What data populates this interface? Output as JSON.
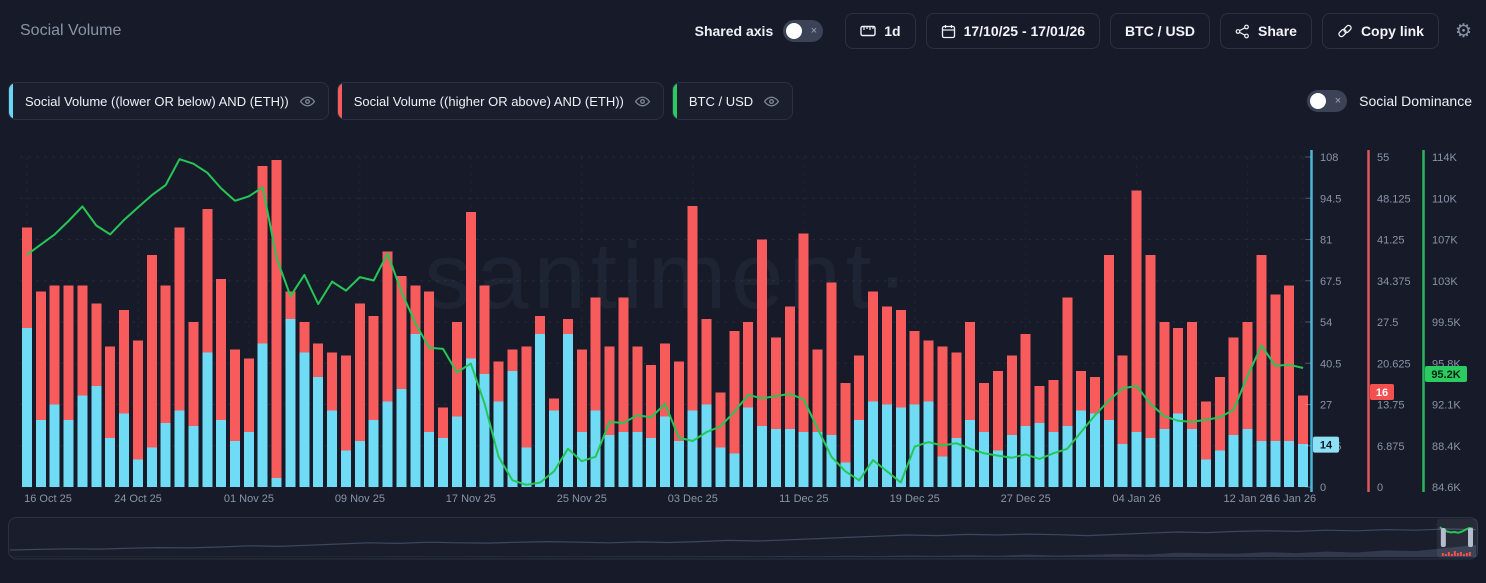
{
  "header": {
    "title": "Social Volume",
    "shared_axis_label": "Shared axis",
    "interval": "1d",
    "date_range": "17/10/25 - 17/01/26",
    "pair": "BTC / USD",
    "share": "Share",
    "copy_link": "Copy link"
  },
  "legend": {
    "items": [
      {
        "label": "Social Volume ((lower OR below) AND (ETH))",
        "color": "#68d8f2"
      },
      {
        "label": "Social Volume ((higher OR above) AND (ETH))",
        "color": "#f75b5c"
      },
      {
        "label": "BTC / USD",
        "color": "#2bcb61"
      }
    ],
    "social_dominance_label": "Social Dominance"
  },
  "watermark": "·santiment·",
  "chart_data": {
    "type": "bar",
    "note": "stacked daily bars (lower=cyan bottom, higher=red top) plus BTC/USD green line, 16 Oct 25 - 16 Jan 26",
    "n_days": 93,
    "x_tick_labels": [
      {
        "label": "16 Oct 25",
        "day": 0
      },
      {
        "label": "24 Oct 25",
        "day": 8
      },
      {
        "label": "01 Nov 25",
        "day": 16
      },
      {
        "label": "09 Nov 25",
        "day": 24
      },
      {
        "label": "17 Nov 25",
        "day": 32
      },
      {
        "label": "25 Nov 25",
        "day": 40
      },
      {
        "label": "03 Dec 25",
        "day": 48
      },
      {
        "label": "11 Dec 25",
        "day": 56
      },
      {
        "label": "19 Dec 25",
        "day": 64
      },
      {
        "label": "27 Dec 25",
        "day": 72
      },
      {
        "label": "04 Jan 26",
        "day": 80
      },
      {
        "label": "12 Jan 26",
        "day": 88
      },
      {
        "label": "16 Jan 26",
        "day": 92
      }
    ],
    "series": [
      {
        "name": "Social Volume ((lower OR below) AND (ETH))",
        "type": "bar",
        "stack": true,
        "color": "#6fdbf5",
        "values": [
          52,
          22,
          27,
          22,
          30,
          33,
          16,
          24,
          9,
          13,
          21,
          25,
          20,
          44,
          22,
          15,
          18,
          47,
          3,
          55,
          44,
          36,
          25,
          12,
          15,
          22,
          28,
          32,
          50,
          18,
          16,
          23,
          42,
          37,
          28,
          38,
          13,
          50,
          25,
          50,
          18,
          25,
          17,
          18,
          18,
          16,
          23,
          15,
          25,
          27,
          13,
          11,
          26,
          20,
          19,
          19,
          18,
          18,
          17,
          8,
          22,
          28,
          27,
          26,
          27,
          28,
          10,
          16,
          22,
          18,
          12,
          17,
          20,
          21,
          18,
          20,
          25,
          24,
          22,
          14,
          18,
          16,
          19,
          24,
          19,
          9,
          12,
          17,
          19,
          15,
          15,
          15,
          14
        ]
      },
      {
        "name": "Social Volume ((higher OR above) AND (ETH))",
        "type": "bar",
        "stack": true,
        "color": "#f75b5c",
        "values": [
          33,
          42,
          39,
          44,
          36,
          27,
          30,
          34,
          39,
          63,
          45,
          60,
          34,
          47,
          46,
          30,
          24,
          58,
          104,
          9,
          10,
          11,
          19,
          31,
          45,
          34,
          49,
          37,
          16,
          46,
          10,
          31,
          48,
          29,
          13,
          7,
          33,
          6,
          4,
          5,
          27,
          37,
          29,
          44,
          28,
          24,
          24,
          26,
          67,
          28,
          18,
          40,
          28,
          61,
          30,
          40,
          65,
          27,
          50,
          26,
          21,
          36,
          32,
          32,
          24,
          20,
          36,
          28,
          32,
          16,
          26,
          26,
          30,
          12,
          17,
          42,
          13,
          12,
          54,
          29,
          79,
          60,
          35,
          28,
          35,
          19,
          24,
          32,
          35,
          61,
          48,
          51,
          16
        ]
      },
      {
        "name": "BTC / USD",
        "type": "line",
        "color": "#26c656",
        "unit": "K USD",
        "values": [
          105.3,
          106.2,
          107.1,
          108.3,
          109.6,
          107.9,
          107.1,
          108.4,
          109.5,
          110.6,
          111.5,
          113.8,
          113.4,
          112.6,
          111.2,
          110.1,
          110.5,
          111.3,
          105.0,
          101.6,
          103.5,
          100.9,
          102.9,
          102.1,
          103.3,
          103.0,
          105.4,
          102.0,
          99.2,
          97.0,
          96.9,
          94.8,
          95.6,
          92.0,
          87.3,
          85.2,
          84.8,
          85.0,
          86.0,
          88.0,
          86.9,
          87.3,
          90.4,
          90.3,
          91.0,
          90.8,
          92.0,
          89.0,
          88.7,
          89.5,
          90.0,
          91.3,
          92.8,
          92.5,
          92.7,
          92.9,
          92.4,
          89.8,
          87.3,
          86.0,
          85.2,
          87.0,
          86.0,
          85.0,
          88.2,
          88.6,
          88.3,
          88.5,
          88.0,
          87.6,
          87.4,
          87.2,
          87.5,
          87.1,
          87.6,
          88.0,
          89.5,
          91.0,
          92.3,
          93.4,
          93.6,
          92.0,
          90.9,
          90.5,
          90.4,
          90.6,
          90.8,
          91.5,
          94.5,
          97.2,
          95.4,
          95.5,
          95.2
        ]
      }
    ],
    "axes": {
      "volume_blue": {
        "ticks": [
          "108",
          "94.5",
          "81",
          "67.5",
          "54",
          "40.5",
          "27",
          "13.5",
          "0"
        ],
        "min": 0,
        "max": 108,
        "color": "#49b8d8",
        "current": 14,
        "current_label": "14"
      },
      "volume_red": {
        "ticks": [
          "55",
          "48.125",
          "41.25",
          "34.375",
          "27.5",
          "20.625",
          "13.75",
          "6.875",
          "0"
        ],
        "min": 0,
        "max": 55,
        "color": "#dd5858",
        "current": 16,
        "current_label": "16"
      },
      "price_green": {
        "ticks": [
          "114K",
          "110K",
          "107K",
          "103K",
          "99.5K",
          "95.8K",
          "92.1K",
          "88.4K",
          "84.6K"
        ],
        "min": 84.6,
        "max": 114.0,
        "color": "#2bb45a",
        "current": 95.2,
        "current_label": "95.2K"
      }
    },
    "grid": true,
    "legend_position": "top-left"
  },
  "preview": {
    "line": [
      0.1,
      0.12,
      0.14,
      0.13,
      0.16,
      0.18,
      0.17,
      0.2,
      0.24,
      0.22,
      0.26,
      0.3,
      0.34,
      0.32,
      0.36,
      0.34,
      0.33,
      0.36,
      0.38,
      0.36,
      0.34,
      0.37,
      0.35,
      0.38,
      0.42,
      0.4,
      0.44,
      0.48,
      0.52,
      0.56,
      0.6,
      0.58,
      0.62,
      0.6,
      0.63,
      0.61,
      0.58,
      0.62,
      0.66,
      0.7,
      0.68,
      0.72,
      0.74,
      0.72,
      0.76,
      0.74,
      0.78,
      0.76,
      0.8,
      0.78
    ],
    "volume": [
      0.02,
      0.02,
      0.03,
      0.02,
      0.02,
      0.03,
      0.02,
      0.03,
      0.02,
      0.03,
      0.03,
      0.02,
      0.03,
      0.04,
      0.03,
      0.03,
      0.04,
      0.03,
      0.04,
      0.03,
      0.04,
      0.05,
      0.04,
      0.05,
      0.06,
      0.05,
      0.08,
      0.06,
      0.1,
      0.07,
      0.12,
      0.09,
      0.15,
      0.1,
      0.2,
      0.12,
      0.18,
      0.25,
      0.2,
      0.35,
      0.3,
      0.28,
      0.4,
      0.32,
      0.45,
      0.38,
      0.55,
      0.5,
      0.75,
      1.0
    ],
    "selection": {
      "start": 0.972,
      "end": 1.0,
      "line": [
        0.74,
        0.6,
        0.52,
        0.48,
        0.5,
        0.46,
        0.52,
        0.62,
        0.7,
        0.66
      ],
      "bar_heights": [
        3,
        2,
        4,
        2,
        5,
        3,
        4,
        2,
        3,
        4
      ]
    }
  }
}
